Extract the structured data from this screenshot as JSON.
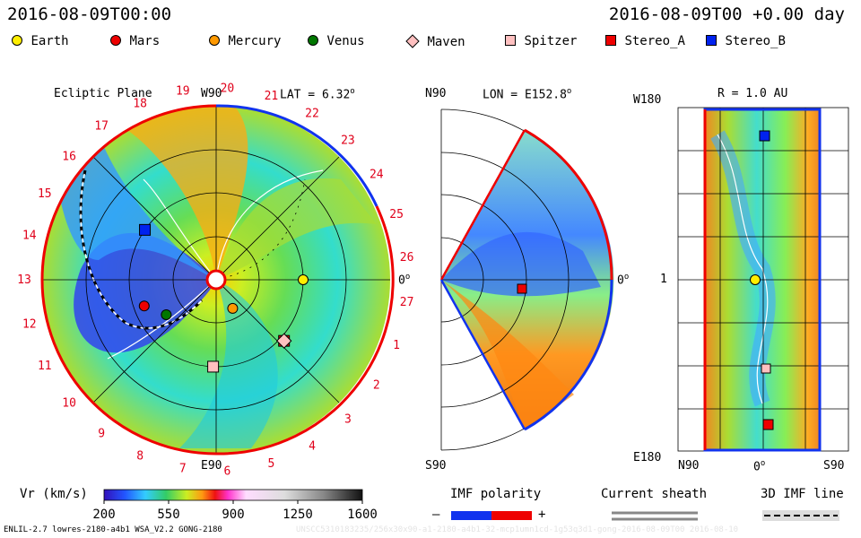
{
  "header": {
    "left_time": "2016-08-09T00:00",
    "right_time": "2016-08-09T00 +0.00 day"
  },
  "legend": [
    {
      "label": "Earth",
      "color": "#ffee00",
      "shape": "circle"
    },
    {
      "label": "Mars",
      "color": "#ee0000",
      "shape": "circle"
    },
    {
      "label": "Mercury",
      "color": "#ff9900",
      "shape": "circle"
    },
    {
      "label": "Venus",
      "color": "#007700",
      "shape": "circle"
    },
    {
      "label": "Maven",
      "color": "#ffc0c0",
      "shape": "diamond"
    },
    {
      "label": "Spitzer",
      "color": "#ffc0c0",
      "shape": "square"
    },
    {
      "label": "Stereo_A",
      "color": "#ee0000",
      "shape": "square"
    },
    {
      "label": "Stereo_B",
      "color": "#0022ee",
      "shape": "square"
    }
  ],
  "panels": {
    "ecliptic": {
      "title": "Ecliptic Plane",
      "lat": "LAT = 6.32",
      "top": "W90",
      "bottom": "E90",
      "right": "0",
      "rotations": [
        "19",
        "20",
        "21",
        "22",
        "23",
        "24",
        "25",
        "26",
        "27",
        "1",
        "2",
        "3",
        "4",
        "5",
        "6",
        "7",
        "8",
        "9",
        "10",
        "11",
        "12",
        "13",
        "14",
        "15",
        "16",
        "17",
        "18"
      ]
    },
    "meridional": {
      "top": "N90",
      "lon": "LON = E152.8",
      "right": "0",
      "bottom": "S90"
    },
    "radial": {
      "title": "R = 1.0 AU",
      "top": "W180",
      "mid": "1",
      "bottom": "E180",
      "x_left": "N90",
      "x_mid": "0",
      "x_right": "S90"
    }
  },
  "colorbar": {
    "label": "Vr (km/s)",
    "ticks": [
      "200",
      "550",
      "900",
      "1250",
      "1600"
    ],
    "range": [
      200,
      1600
    ]
  },
  "imf": {
    "title": "IMF polarity",
    "minus": "–",
    "plus": "+"
  },
  "sheath": {
    "title": "Current sheath"
  },
  "imf3d": {
    "title": "3D IMF line"
  },
  "footer": {
    "left": "ENLIL-2.7 lowres-2180-a4b1 WSA_V2.2 GONG-2180",
    "right": "UNSCC5310183235/256x30x90-a1-2180-a4b1-32-mcp1umn1cd-1g53q3d1-gong-2016-08-09T00 2016-08-10"
  },
  "chart_data": {
    "type": "heatmap",
    "title": "Vr (km/s)",
    "colorscale_range": [
      200,
      1600
    ],
    "bodies_ecliptic": [
      {
        "name": "Earth",
        "r_au": 1.0,
        "angle_deg": 0
      },
      {
        "name": "Stereo_A",
        "r_au": 1.05,
        "angle_deg": -42
      },
      {
        "name": "Maven",
        "r_au": 1.05,
        "angle_deg": -42
      },
      {
        "name": "Stereo_B",
        "r_au": 1.0,
        "angle_deg": 145
      },
      {
        "name": "Mars",
        "r_au": 0.88,
        "angle_deg": 200
      },
      {
        "name": "Venus",
        "r_au": 0.7,
        "angle_deg": 215
      },
      {
        "name": "Mercury",
        "r_au": 0.38,
        "angle_deg": -60
      },
      {
        "name": "Spitzer",
        "r_au": 1.0,
        "angle_deg": -92
      }
    ]
  }
}
